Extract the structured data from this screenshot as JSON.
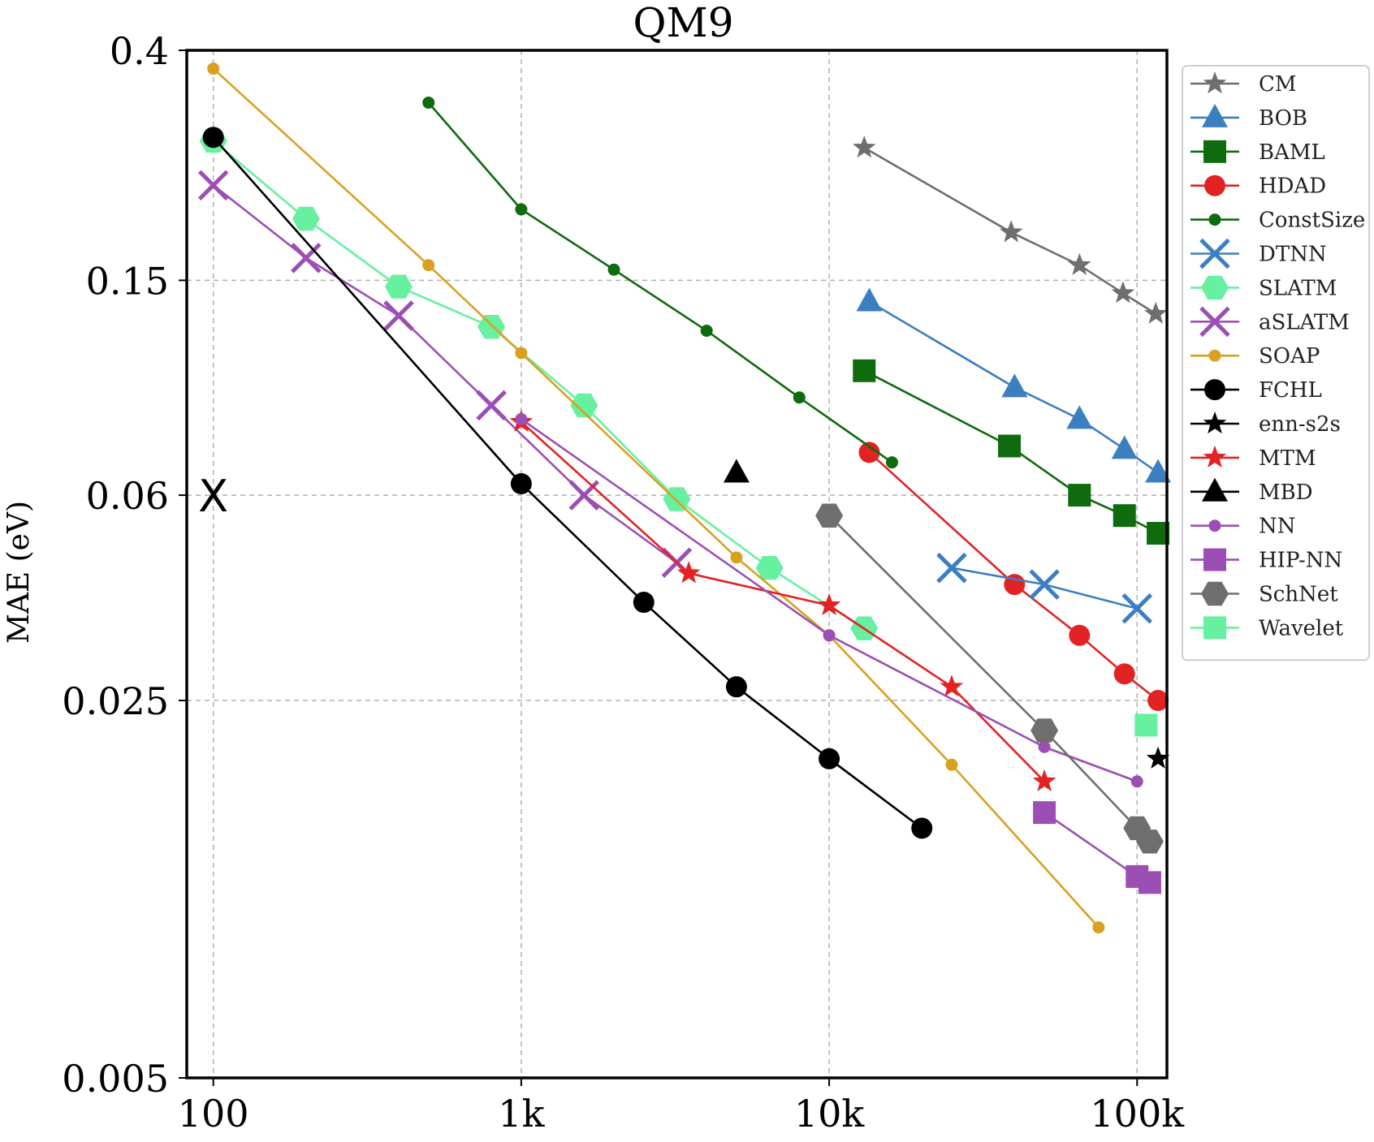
{
  "chart_data": {
    "type": "line",
    "title": "QM9",
    "xlabel": "",
    "ylabel": "MAE (eV)",
    "xscale": "log",
    "yscale": "log",
    "xlim": [
      82,
      125000
    ],
    "ylim": [
      0.005,
      0.4
    ],
    "x_ticks": [
      100,
      1000,
      10000,
      100000
    ],
    "x_tick_labels": [
      "100",
      "1k",
      "10k",
      "100k"
    ],
    "y_ticks": [
      0.005,
      0.025,
      0.06,
      0.15,
      0.4
    ],
    "y_tick_labels": [
      "0.005",
      "0.025",
      "0.06",
      "0.15",
      "0.4"
    ],
    "grid": true,
    "legend_position": "outside-right",
    "series": [
      {
        "name": "CM",
        "color": "#6e6e6e",
        "marker": "star",
        "line": true,
        "size": "large",
        "x": [
          13000,
          39000,
          65000,
          90000,
          115000
        ],
        "y": [
          0.264,
          0.184,
          0.16,
          0.142,
          0.13
        ]
      },
      {
        "name": "BOB",
        "color": "#3c7fc0",
        "marker": "triangle",
        "line": true,
        "size": "large",
        "x": [
          13500,
          40000,
          65000,
          91000,
          117000
        ],
        "y": [
          0.137,
          0.095,
          0.083,
          0.073,
          0.066
        ]
      },
      {
        "name": "BAML",
        "color": "#0e6b0e",
        "marker": "square",
        "line": true,
        "size": "large",
        "x": [
          13000,
          38500,
          65000,
          91000,
          117000
        ],
        "y": [
          0.102,
          0.074,
          0.06,
          0.055,
          0.051
        ]
      },
      {
        "name": "HDAD",
        "color": "#e32223",
        "marker": "circle",
        "line": true,
        "size": "large",
        "x": [
          13500,
          40000,
          65000,
          91000,
          117000
        ],
        "y": [
          0.072,
          0.041,
          0.033,
          0.028,
          0.025
        ]
      },
      {
        "name": "ConstSize",
        "color": "#0e6b0e",
        "marker": "circle",
        "line": true,
        "size": "small",
        "x": [
          500,
          1000,
          2000,
          4000,
          8000,
          16000
        ],
        "y": [
          0.32,
          0.203,
          0.157,
          0.121,
          0.091,
          0.069
        ]
      },
      {
        "name": "DTNN",
        "color": "#3c7fc0",
        "marker": "x",
        "line": true,
        "size": "large",
        "x": [
          25000,
          50000,
          100000
        ],
        "y": [
          0.044,
          0.041,
          0.037
        ]
      },
      {
        "name": "SLATM",
        "color": "#66f0a0",
        "marker": "hexagon",
        "line": true,
        "size": "large",
        "x": [
          100,
          200,
          400,
          800,
          1600,
          3200,
          6400,
          13000
        ],
        "y": [
          0.272,
          0.195,
          0.146,
          0.123,
          0.088,
          0.059,
          0.044,
          0.034
        ]
      },
      {
        "name": "aSLATM",
        "color": "#9b4fb5",
        "marker": "x",
        "line": true,
        "size": "large",
        "x": [
          100,
          200,
          400,
          800,
          1600,
          3200
        ],
        "y": [
          0.225,
          0.165,
          0.129,
          0.088,
          0.06,
          0.045
        ]
      },
      {
        "name": "SOAP",
        "color": "#daa022",
        "marker": "circle",
        "line": true,
        "size": "small",
        "x": [
          100,
          500,
          1000,
          5000,
          10000,
          25000,
          75000
        ],
        "y": [
          0.37,
          0.16,
          0.11,
          0.046,
          0.033,
          0.019,
          0.0095
        ]
      },
      {
        "name": "FCHL",
        "color": "#000000",
        "marker": "circle",
        "line": true,
        "size": "large",
        "x": [
          100,
          1000,
          2500,
          5000,
          10000,
          20000
        ],
        "y": [
          0.276,
          0.063,
          0.038,
          0.0265,
          0.0195,
          0.0145
        ]
      },
      {
        "name": "enn-s2s",
        "color": "#000000",
        "marker": "star",
        "line": false,
        "size": "large",
        "x": [
          117000
        ],
        "y": [
          0.0195
        ]
      },
      {
        "name": "MTM",
        "color": "#e32223",
        "marker": "star",
        "line": true,
        "size": "large",
        "x": [
          1000,
          3500,
          10000,
          25000,
          50000
        ],
        "y": [
          0.082,
          0.043,
          0.0375,
          0.0265,
          0.0177
        ]
      },
      {
        "name": "MBD",
        "color": "#000000",
        "marker": "triangle",
        "line": false,
        "size": "large",
        "x": [
          5000
        ],
        "y": [
          0.066
        ]
      },
      {
        "name": "NN",
        "color": "#9b4fb5",
        "marker": "circle",
        "line": true,
        "size": "small",
        "x": [
          1000,
          10000,
          50000,
          100000
        ],
        "y": [
          0.083,
          0.033,
          0.0205,
          0.0177
        ]
      },
      {
        "name": "HIP-NN",
        "color": "#9b4fb5",
        "marker": "square",
        "line": true,
        "size": "large",
        "x": [
          50000,
          100000,
          110000
        ],
        "y": [
          0.0155,
          0.0118,
          0.0115
        ]
      },
      {
        "name": "SchNet",
        "color": "#6e6e6e",
        "marker": "hexagon",
        "line": true,
        "size": "large",
        "x": [
          10000,
          50000,
          100000,
          110000
        ],
        "y": [
          0.055,
          0.022,
          0.0145,
          0.0137
        ]
      },
      {
        "name": "Wavelet",
        "color": "#66f0a0",
        "marker": "square",
        "line": false,
        "size": "large",
        "x": [
          107000
        ],
        "y": [
          0.0225
        ]
      }
    ],
    "annotations": [
      {
        "text": "X",
        "x": 100,
        "y": 0.06,
        "color": "#000000"
      }
    ]
  }
}
